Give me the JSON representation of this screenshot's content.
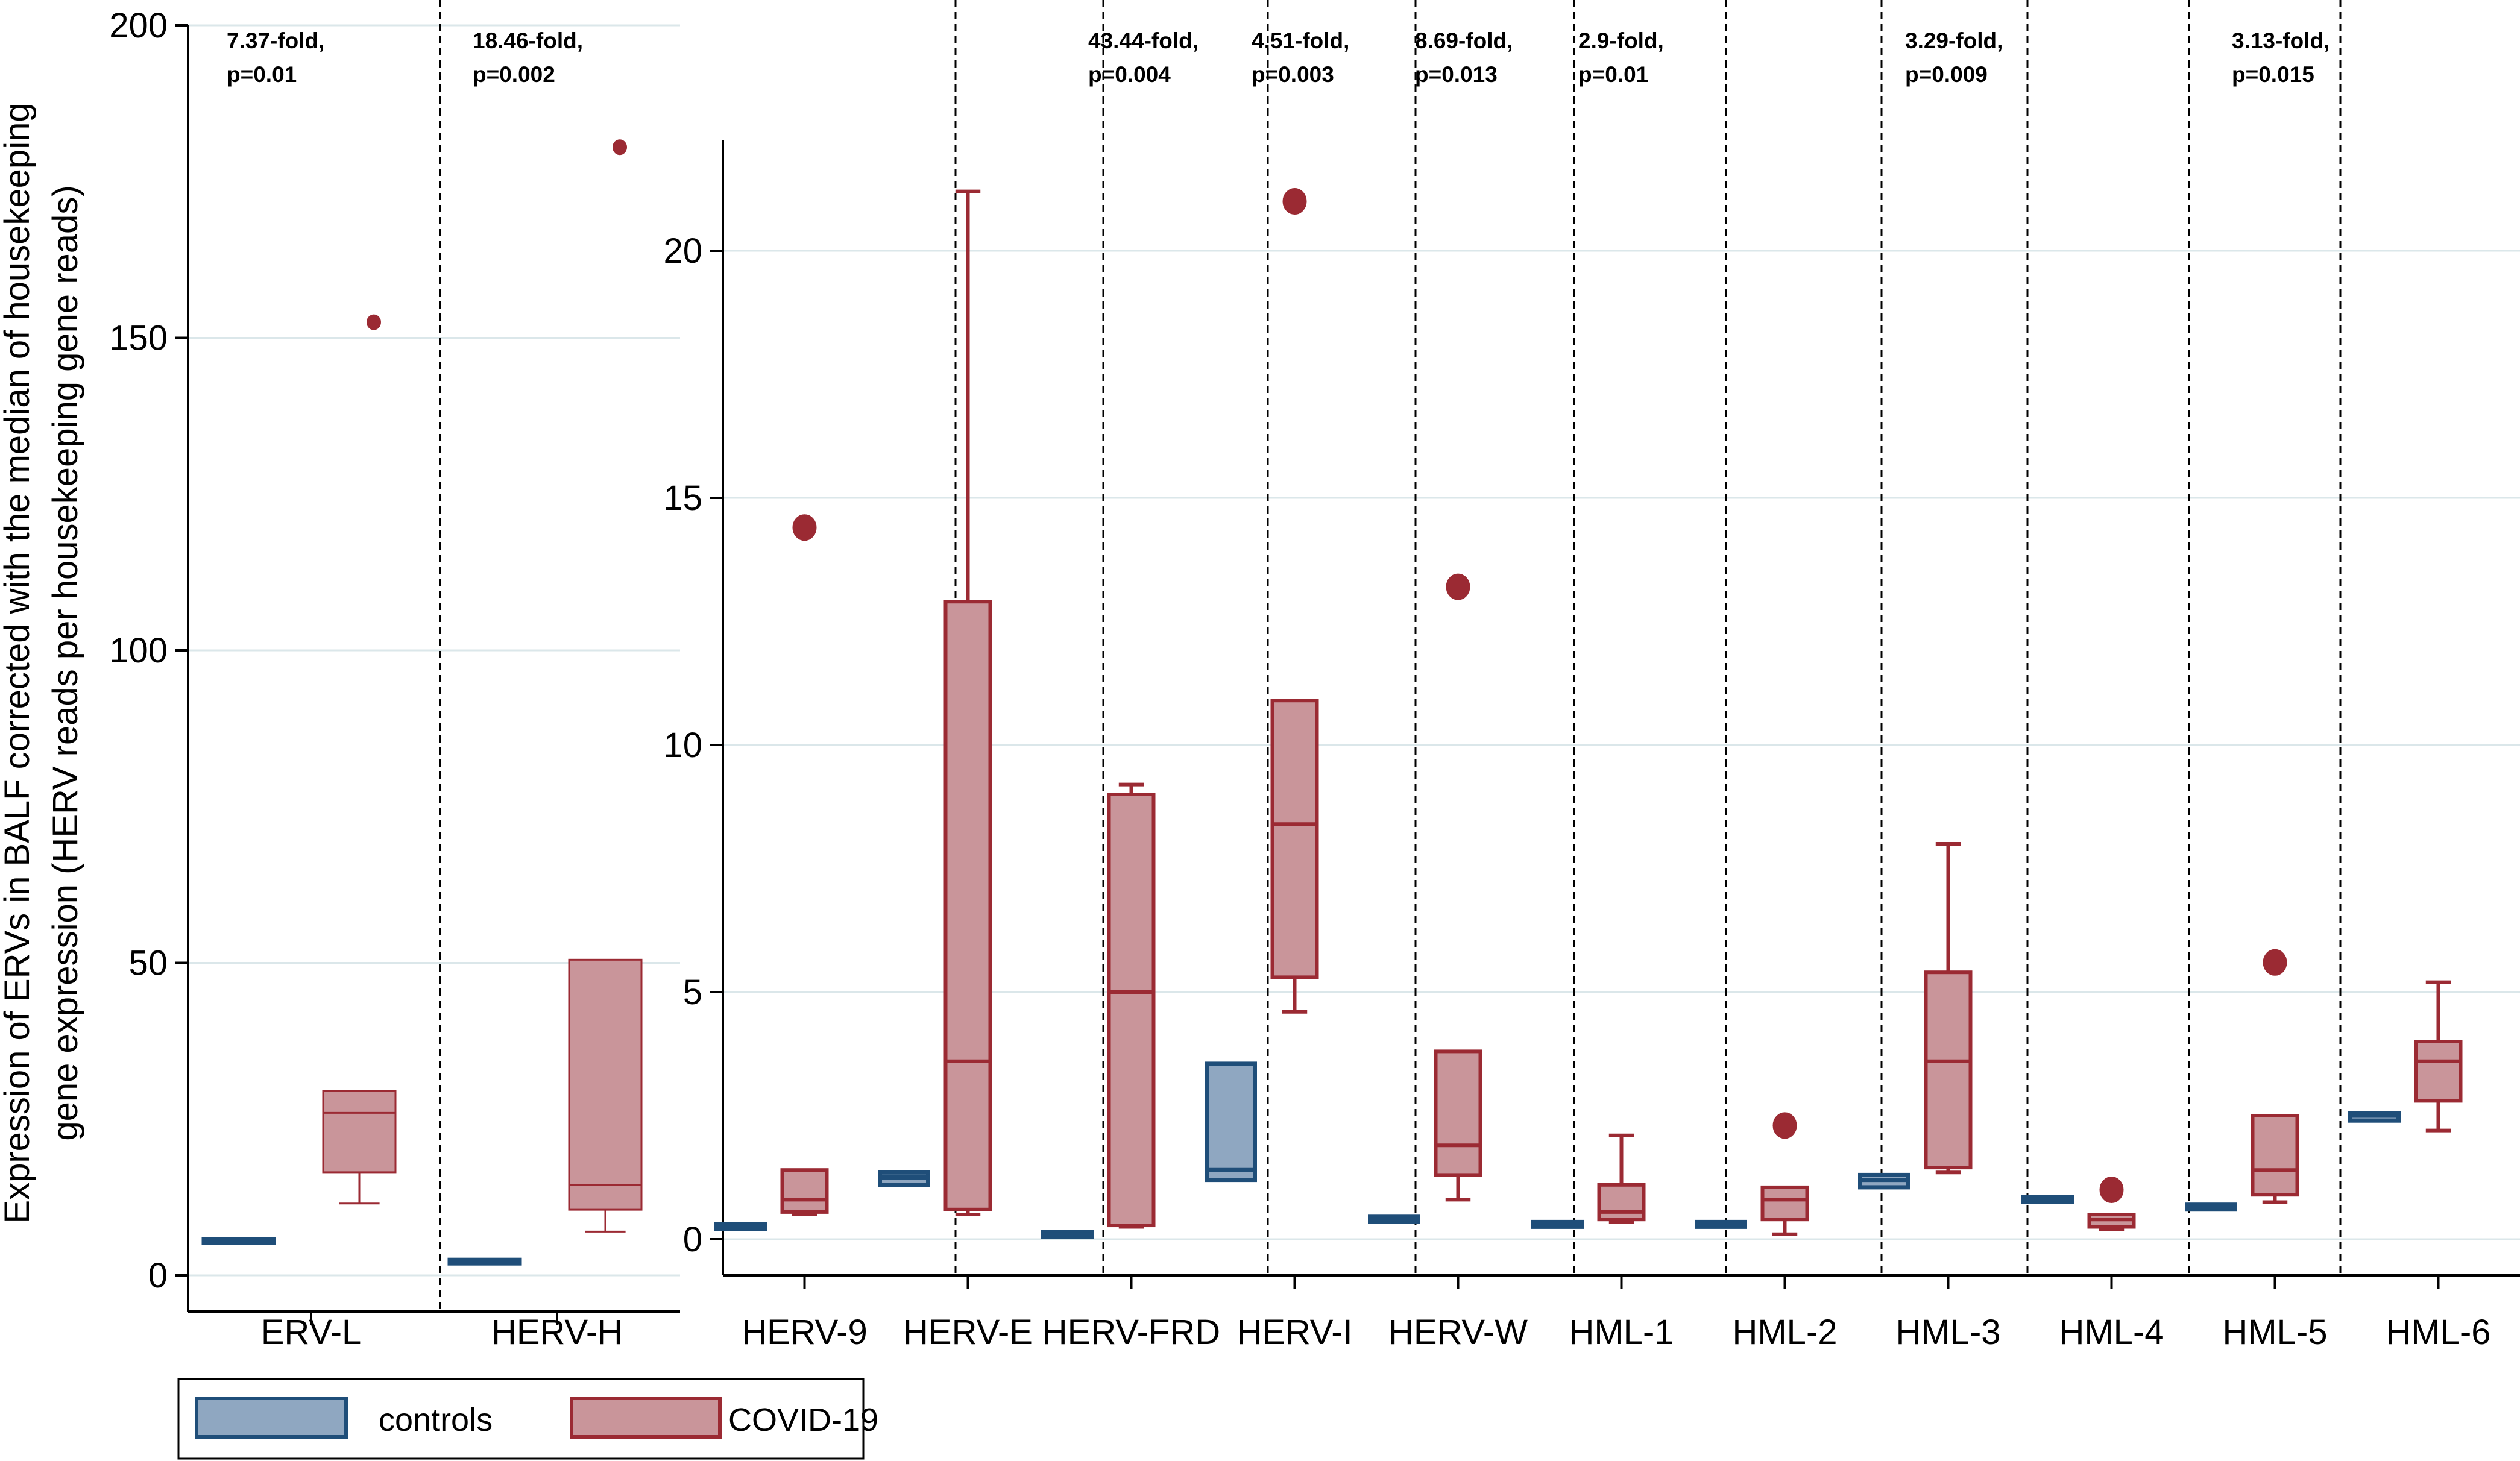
{
  "ylabel_lines": [
    "Expression of ERVs in BALF corrected with the median of housekeeping",
    "gene expression (HERV reads per housekeeping gene reads)"
  ],
  "legend": [
    {
      "label": "controls",
      "color": "#1f4e79",
      "fill": "#8fa7c1"
    },
    {
      "label": "COVID-19",
      "color": "#9b2a33",
      "fill": "#c9959a"
    }
  ],
  "chart_data": [
    {
      "type": "box",
      "ylim": [
        0,
        200
      ],
      "yticks": [
        0,
        50,
        100,
        150,
        200
      ],
      "grid": true,
      "categories": [
        "ERV-L",
        "HERV-H"
      ],
      "annotations": [
        {
          "category": "ERV-L",
          "lines": [
            "7.37-fold,",
            "p=0.01"
          ]
        },
        {
          "category": "HERV-H",
          "lines": [
            "18.46-fold,",
            "p=0.002"
          ]
        }
      ],
      "series": [
        {
          "name": "controls",
          "boxes": [
            {
              "category": "ERV-L",
              "min": 5.2,
              "q1": 5.2,
              "median": 5.5,
              "q3": 5.7,
              "max": 5.7,
              "outliers": []
            },
            {
              "category": "HERV-H",
              "min": 2.0,
              "q1": 2.0,
              "median": 2.2,
              "q3": 2.4,
              "max": 2.4,
              "outliers": []
            }
          ]
        },
        {
          "name": "COVID-19",
          "boxes": [
            {
              "category": "ERV-L",
              "min": 11.5,
              "q1": 16.5,
              "median": 26.0,
              "q3": 29.5,
              "max": 29.5,
              "outliers": [
                152.5
              ]
            },
            {
              "category": "HERV-H",
              "min": 7.0,
              "q1": 10.5,
              "median": 14.5,
              "q3": 50.5,
              "max": 50.5,
              "outliers": [
                180.5
              ]
            }
          ]
        }
      ]
    },
    {
      "type": "box",
      "ylim": [
        0,
        22
      ],
      "yticks": [
        0,
        5,
        10,
        15,
        20
      ],
      "grid": true,
      "categories": [
        "HERV-9",
        "HERV-E",
        "HERV-FRD",
        "HERV-I",
        "HERV-W",
        "HML-1",
        "HML-2",
        "HML-3",
        "HML-4",
        "HML-5",
        "HML-6"
      ],
      "annotations": [
        {
          "category": "HERV-FRD",
          "lines": [
            "43.44-fold,",
            "p=0.004"
          ]
        },
        {
          "category": "HERV-I",
          "lines": [
            "4.51-fold,",
            "p=0.003"
          ]
        },
        {
          "category": "HERV-W",
          "lines": [
            "8.69-fold,",
            "p=0.013"
          ]
        },
        {
          "category": "HML-1",
          "lines": [
            "2.9-fold,",
            "p=0.01"
          ]
        },
        {
          "category": "HML-3",
          "lines": [
            "3.29-fold,",
            "p=0.009"
          ]
        },
        {
          "category": "HML-5",
          "lines": [
            "3.13-fold,",
            "p=0.015"
          ]
        }
      ],
      "series": [
        {
          "name": "controls",
          "boxes": [
            {
              "category": "HERV-9",
              "min": 0.22,
              "q1": 0.22,
              "median": 0.25,
              "q3": 0.28,
              "max": 0.28,
              "outliers": []
            },
            {
              "category": "HERV-E",
              "min": 1.1,
              "q1": 1.1,
              "median": 1.25,
              "q3": 1.35,
              "max": 1.35,
              "outliers": []
            },
            {
              "category": "HERV-FRD",
              "min": 0.08,
              "q1": 0.08,
              "median": 0.1,
              "q3": 0.12,
              "max": 0.12,
              "outliers": []
            },
            {
              "category": "HERV-I",
              "min": 1.2,
              "q1": 1.2,
              "median": 1.4,
              "q3": 3.55,
              "max": 3.55,
              "outliers": []
            },
            {
              "category": "HERV-W",
              "min": 0.38,
              "q1": 0.38,
              "median": 0.4,
              "q3": 0.43,
              "max": 0.43,
              "outliers": []
            },
            {
              "category": "HML-1",
              "min": 0.27,
              "q1": 0.27,
              "median": 0.3,
              "q3": 0.33,
              "max": 0.33,
              "outliers": []
            },
            {
              "category": "HML-2",
              "min": 0.27,
              "q1": 0.27,
              "median": 0.3,
              "q3": 0.33,
              "max": 0.33,
              "outliers": []
            },
            {
              "category": "HML-3",
              "min": 1.05,
              "q1": 1.05,
              "median": 1.2,
              "q3": 1.3,
              "max": 1.3,
              "outliers": []
            },
            {
              "category": "HML-4",
              "min": 0.78,
              "q1": 0.78,
              "median": 0.8,
              "q3": 0.82,
              "max": 0.82,
              "outliers": []
            },
            {
              "category": "HML-5",
              "min": 0.62,
              "q1": 0.62,
              "median": 0.65,
              "q3": 0.68,
              "max": 0.68,
              "outliers": []
            },
            {
              "category": "HML-6",
              "min": 2.4,
              "q1": 2.4,
              "median": 2.5,
              "q3": 2.55,
              "max": 2.55,
              "outliers": []
            }
          ]
        },
        {
          "name": "COVID-19",
          "boxes": [
            {
              "category": "HERV-9",
              "min": 0.5,
              "q1": 0.55,
              "median": 0.8,
              "q3": 1.4,
              "max": 1.4,
              "outliers": [
                14.4
              ]
            },
            {
              "category": "HERV-E",
              "min": 0.5,
              "q1": 0.6,
              "median": 3.6,
              "q3": 12.9,
              "max": 21.2,
              "outliers": []
            },
            {
              "category": "HERV-FRD",
              "min": 0.25,
              "q1": 0.28,
              "median": 5.0,
              "q3": 9.0,
              "max": 9.2,
              "outliers": []
            },
            {
              "category": "HERV-I",
              "min": 4.6,
              "q1": 5.3,
              "median": 8.4,
              "q3": 10.9,
              "max": 10.9,
              "outliers": [
                21.0
              ]
            },
            {
              "category": "HERV-W",
              "min": 0.8,
              "q1": 1.3,
              "median": 1.9,
              "q3": 3.8,
              "max": 3.8,
              "outliers": [
                13.2
              ]
            },
            {
              "category": "HML-1",
              "min": 0.35,
              "q1": 0.4,
              "median": 0.55,
              "q3": 1.1,
              "max": 2.1,
              "outliers": []
            },
            {
              "category": "HML-2",
              "min": 0.1,
              "q1": 0.4,
              "median": 0.8,
              "q3": 1.05,
              "max": 1.05,
              "outliers": [
                2.3
              ]
            },
            {
              "category": "HML-3",
              "min": 1.35,
              "q1": 1.45,
              "median": 3.6,
              "q3": 5.4,
              "max": 8.0,
              "outliers": []
            },
            {
              "category": "HML-4",
              "min": 0.2,
              "q1": 0.25,
              "median": 0.4,
              "q3": 0.5,
              "max": 0.5,
              "outliers": [
                1.0
              ]
            },
            {
              "category": "HML-5",
              "min": 0.75,
              "q1": 0.9,
              "median": 1.4,
              "q3": 2.5,
              "max": 2.5,
              "outliers": [
                5.6
              ]
            },
            {
              "category": "HML-6",
              "min": 2.2,
              "q1": 2.8,
              "median": 3.6,
              "q3": 4.0,
              "max": 5.2,
              "outliers": []
            }
          ]
        }
      ]
    }
  ]
}
